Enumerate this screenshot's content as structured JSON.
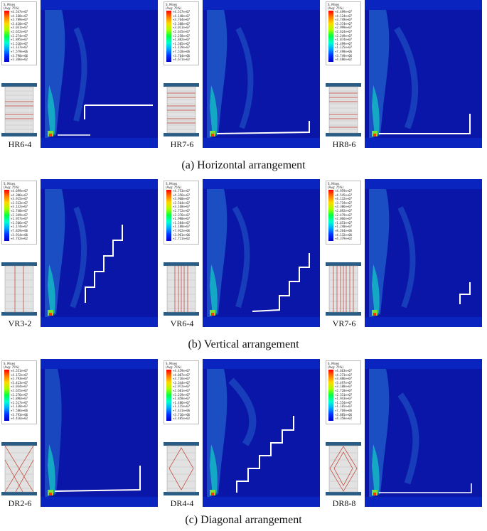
{
  "legend": {
    "title": "S, Mises",
    "subtitle": "(Avg: 75%)"
  },
  "rows": [
    {
      "caption": "(a) Horizontal arrangement",
      "specimens": [
        {
          "label": "HR6-4",
          "legend_values": [
            "+4.547e+07",
            "+4.168e+07",
            "+3.789e+07",
            "+3.410e+07",
            "+3.031e+07",
            "+2.652e+07",
            "+2.274e+07",
            "+1.895e+07",
            "+1.516e+07",
            "+1.137e+07",
            "+7.579e+06",
            "+3.790e+06",
            "+3.366e+02"
          ]
        },
        {
          "label": "HR7-6",
          "legend_values": [
            "+4.517e+07",
            "+4.140e+07",
            "+3.764e+07",
            "+3.388e+07",
            "+3.011e+07",
            "+2.635e+07",
            "+2.258e+07",
            "+1.882e+07",
            "+1.505e+07",
            "+1.129e+07",
            "+7.528e+06",
            "+3.764e+06",
            "+4.671e+02"
          ]
        },
        {
          "label": "HR8-6",
          "legend_values": [
            "+4.499e+07",
            "+4.124e+07",
            "+3.749e+07",
            "+3.374e+07",
            "+2.999e+07",
            "+2.624e+07",
            "+2.249e+07",
            "+1.874e+07",
            "+1.499e+07",
            "+1.125e+07",
            "+7.498e+06",
            "+3.749e+06",
            "+4.486e+02"
          ]
        }
      ]
    },
    {
      "caption": "(b) Vertical arrangement",
      "specimens": [
        {
          "label": "VR3-2",
          "legend_values": [
            "+4.699e+07",
            "+4.306e+07",
            "+3.915e+07",
            "+3.523e+07",
            "+3.132e+07",
            "+2.740e+07",
            "+2.349e+07",
            "+1.957e+07",
            "+1.566e+07",
            "+1.174e+07",
            "+7.829e+06",
            "+3.914e+06",
            "+4.742e+02"
          ]
        },
        {
          "label": "VR6-4",
          "legend_values": [
            "+4.753e+07",
            "+4.356e+07",
            "+3.960e+07",
            "+3.564e+07",
            "+3.168e+07",
            "+2.772e+07",
            "+2.376e+07",
            "+1.980e+07",
            "+1.584e+07",
            "+1.188e+07",
            "+7.922e+06",
            "+3.961e+06",
            "+2.721e+02"
          ]
        },
        {
          "label": "VR7-6",
          "legend_values": [
            "+4.959e+07",
            "+4.545e+07",
            "+4.132e+07",
            "+3.719e+07",
            "+3.306e+07",
            "+2.892e+07",
            "+2.479e+07",
            "+2.066e+07",
            "+1.653e+07",
            "+1.240e+07",
            "+8.264e+06",
            "+4.132e+06",
            "+4.379e+02"
          ]
        }
      ]
    },
    {
      "caption": "(c) Diagonal arrangement",
      "specimens": [
        {
          "label": "DR2-6",
          "legend_values": [
            "+4.551e+07",
            "+4.172e+07",
            "+3.793e+07",
            "+3.413e+07",
            "+3.034e+07",
            "+2.655e+07",
            "+2.276e+07",
            "+1.896e+07",
            "+1.517e+07",
            "+1.138e+07",
            "+7.586e+06",
            "+3.793e+06",
            "+4.416e+02"
          ]
        },
        {
          "label": "DR4-4",
          "legend_values": [
            "+4.459e+07",
            "+4.087e+07",
            "+3.716e+07",
            "+3.344e+07",
            "+2.972e+07",
            "+2.601e+07",
            "+2.229e+07",
            "+1.858e+07",
            "+1.486e+07",
            "+1.115e+07",
            "+7.431e+06",
            "+3.716e+06",
            "+3.485e+02"
          ]
        },
        {
          "label": "DR8-8",
          "legend_values": [
            "+4.663e+07",
            "+4.273e+07",
            "+3.886e+07",
            "+3.497e+07",
            "+3.108e+07",
            "+2.720e+07",
            "+2.331e+07",
            "+1.943e+07",
            "+1.554e+07",
            "+1.165e+07",
            "+7.769e+06",
            "+3.885e+06",
            "+4.358e+02"
          ]
        }
      ]
    }
  ]
}
